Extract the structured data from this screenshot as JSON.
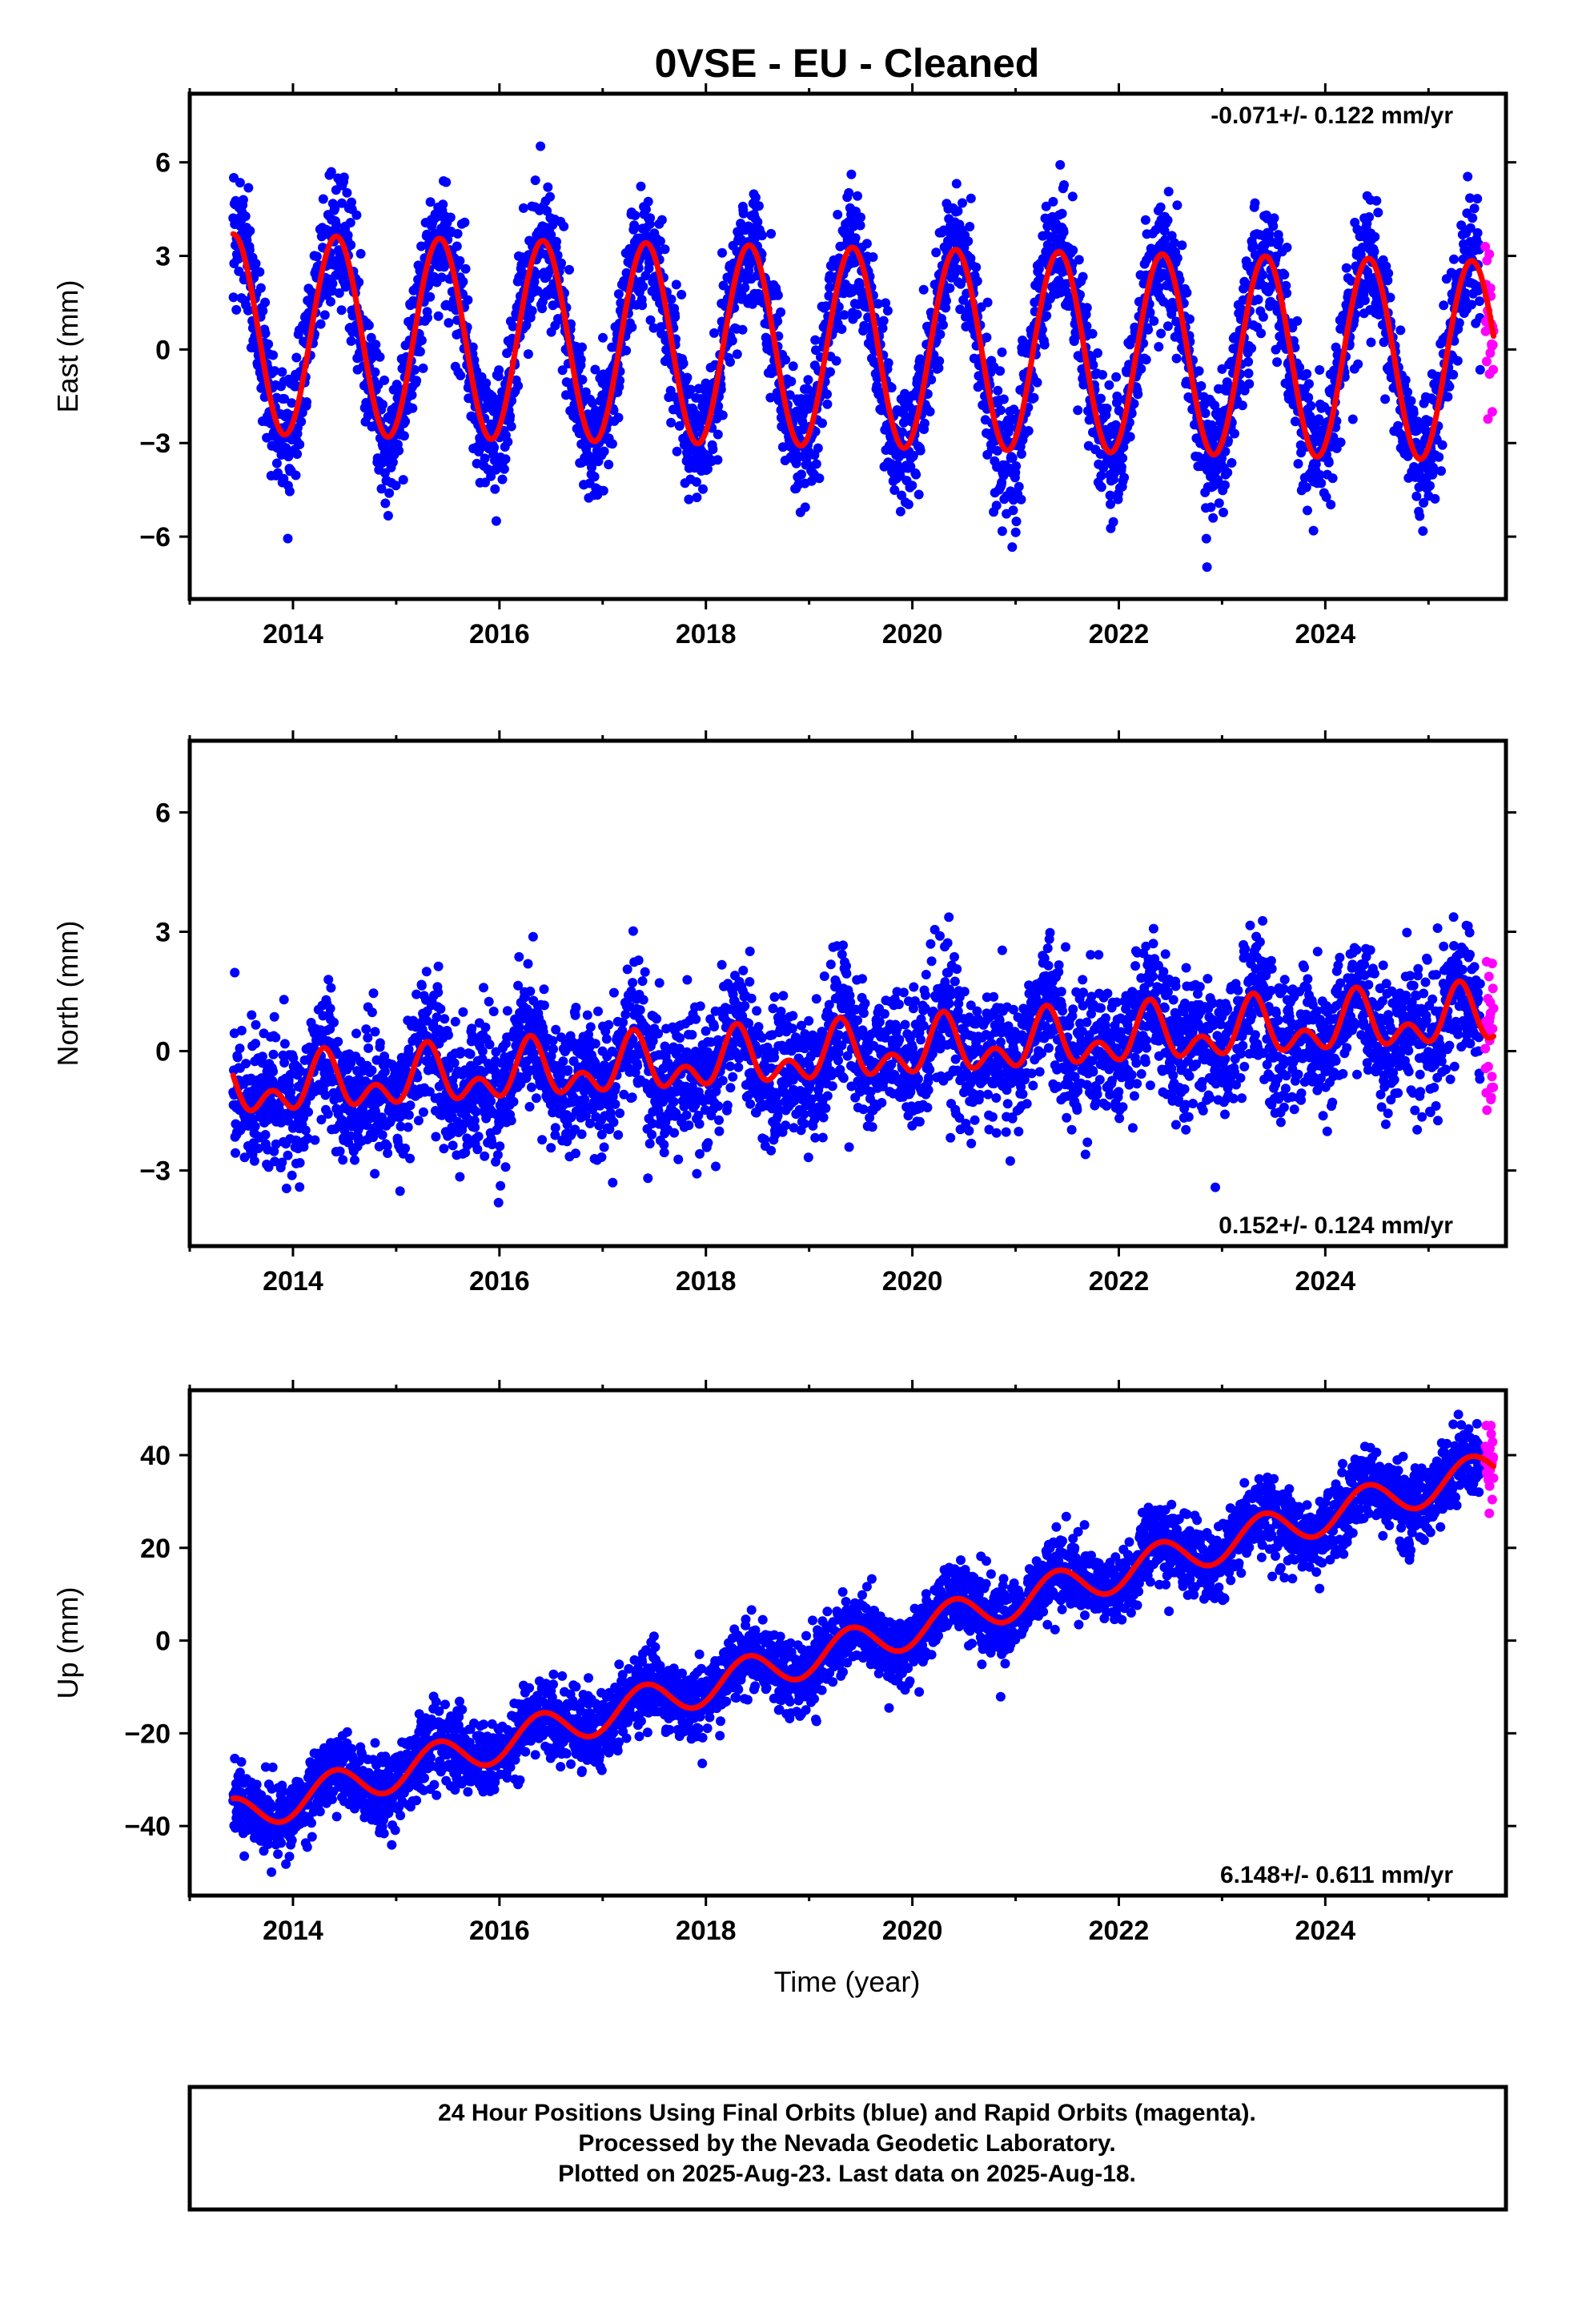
{
  "title": "0VSE  - EU - Cleaned",
  "x_axis_label": "Time (year)",
  "caption": {
    "lines": [
      "24 Hour Positions Using Final Orbits (blue) and Rapid Orbits (magenta).",
      "Processed by the Nevada Geodetic Laboratory.",
      "Plotted on 2025-Aug-23. Last data on 2025-Aug-18."
    ]
  },
  "colors": {
    "final_orbits": "#0000ff",
    "rapid_orbits": "#ff00ff",
    "fit": "#ff0000",
    "frame": "#000000"
  },
  "chart_data": [
    {
      "type": "scatter",
      "component": "East",
      "ylabel": "East (mm)",
      "xlabel": "",
      "xlim": [
        2013.0,
        2025.75
      ],
      "ylim": [
        -8,
        8.2
      ],
      "xticks": [
        2014,
        2016,
        2018,
        2020,
        2022,
        2024
      ],
      "xtick_labels": [
        "2014",
        "2016",
        "2018",
        "2020",
        "2022",
        "2024"
      ],
      "yticks": [
        -6,
        -3,
        0,
        3,
        6
      ],
      "ytick_labels": [
        "−6",
        "−3",
        "0",
        "3",
        "6"
      ],
      "rate_text": "-0.071+/- 0.122 mm/yr",
      "rate_position": "top-right",
      "model": {
        "t0": 2013.42,
        "t1": 2025.63,
        "rate": -0.071,
        "intercept": 0.5,
        "annual_amp": 3.2,
        "annual_phase_year": 2013.42,
        "semiannual_amp": 0.0,
        "noise_sd": 1.05
      },
      "series": [
        {
          "label": "final orbits",
          "color": "#0000ff",
          "t_start": 2013.42,
          "t_end": 2025.5,
          "n_points": 3900
        },
        {
          "label": "rapid orbits",
          "color": "#ff00ff",
          "t_start": 2025.55,
          "t_end": 2025.63,
          "n_points": 26
        },
        {
          "label": "fit",
          "color": "#ff0000"
        }
      ]
    },
    {
      "type": "scatter",
      "component": "North",
      "ylabel": "North (mm)",
      "xlabel": "",
      "xlim": [
        2013.0,
        2025.75
      ],
      "ylim": [
        -4.9,
        7.8
      ],
      "xticks": [
        2014,
        2016,
        2018,
        2020,
        2022,
        2024
      ],
      "xtick_labels": [
        "2014",
        "2016",
        "2018",
        "2020",
        "2022",
        "2024"
      ],
      "yticks": [
        -3,
        0,
        3,
        6
      ],
      "ytick_labels": [
        "−3",
        "0",
        "3",
        "6"
      ],
      "rate_text": "0.152+/- 0.124 mm/yr",
      "rate_position": "bottom-right",
      "model": {
        "t0": 2013.42,
        "t1": 2025.63,
        "rate": 0.152,
        "intercept": -1.0,
        "annual_amp": 0.5,
        "annual_phase_year": 2013.3,
        "semiannual_amp": 0.45,
        "noise_sd": 0.85
      },
      "series": [
        {
          "label": "final orbits",
          "color": "#0000ff",
          "t_start": 2013.42,
          "t_end": 2025.5,
          "n_points": 3900
        },
        {
          "label": "rapid orbits",
          "color": "#ff00ff",
          "t_start": 2025.55,
          "t_end": 2025.63,
          "n_points": 26
        },
        {
          "label": "fit",
          "color": "#ff0000"
        }
      ]
    },
    {
      "type": "scatter",
      "component": "Up",
      "ylabel": "Up (mm)",
      "xlabel": "Time (year)",
      "xlim": [
        2013.0,
        2025.75
      ],
      "ylim": [
        -55,
        54
      ],
      "xticks": [
        2014,
        2016,
        2018,
        2020,
        2022,
        2024
      ],
      "xtick_labels": [
        "2014",
        "2016",
        "2018",
        "2020",
        "2022",
        "2024"
      ],
      "yticks": [
        -40,
        -20,
        0,
        20,
        40
      ],
      "ytick_labels": [
        "−40",
        "−20",
        "0",
        "20",
        "40"
      ],
      "rate_text": "6.148+/- 0.611 mm/yr",
      "rate_position": "bottom-right",
      "model": {
        "t0": 2013.42,
        "t1": 2025.63,
        "rate": 6.148,
        "intercept": -38.0,
        "annual_amp": 4.0,
        "annual_phase_year": 2013.4,
        "semiannual_amp": 0.0,
        "noise_sd": 4.0
      },
      "series": [
        {
          "label": "final orbits",
          "color": "#0000ff",
          "t_start": 2013.42,
          "t_end": 2025.5,
          "n_points": 3900
        },
        {
          "label": "rapid orbits",
          "color": "#ff00ff",
          "t_start": 2025.55,
          "t_end": 2025.63,
          "n_points": 26
        },
        {
          "label": "fit",
          "color": "#ff0000"
        }
      ]
    }
  ]
}
